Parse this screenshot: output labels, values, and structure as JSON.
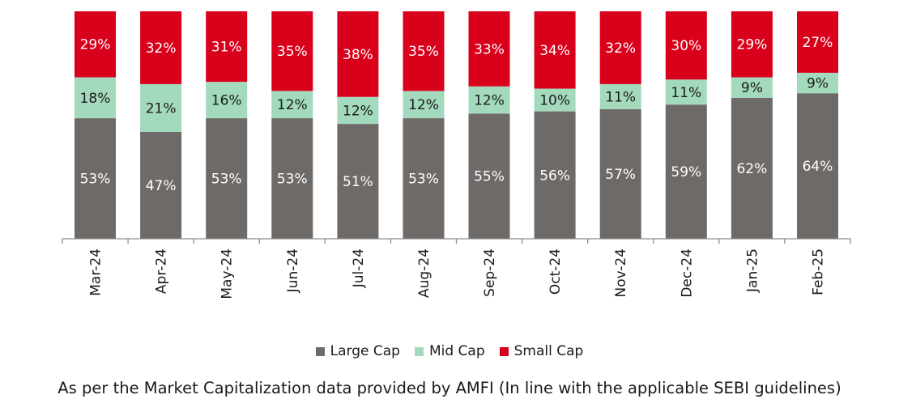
{
  "chart_data": {
    "type": "bar",
    "stacked": true,
    "percent_stacked": true,
    "categories": [
      "Mar-24",
      "Apr-24",
      "May-24",
      "Jun-24",
      "Jul-24",
      "Aug-24",
      "Sep-24",
      "Oct-24",
      "Nov-24",
      "Dec-24",
      "Jan-25",
      "Feb-25"
    ],
    "series": [
      {
        "name": "Large Cap",
        "color": "#6e6a68",
        "values": [
          53,
          47,
          53,
          53,
          51,
          53,
          55,
          56,
          57,
          59,
          62,
          64
        ]
      },
      {
        "name": "Mid Cap",
        "color": "#a3d9bd",
        "values": [
          18,
          21,
          16,
          12,
          12,
          12,
          12,
          10,
          11,
          11,
          9,
          9
        ]
      },
      {
        "name": "Small Cap",
        "color": "#d9001b",
        "values": [
          29,
          32,
          31,
          35,
          38,
          35,
          33,
          34,
          32,
          30,
          29,
          27
        ]
      }
    ],
    "value_label_suffix": "%",
    "x_tick_rotation": "vertical",
    "ylim": [
      0,
      100
    ],
    "grid": false,
    "legend": "bottom"
  },
  "footnote": "As per the Market Capitalization data provided by AMFI (In line with the applicable SEBI guidelines)"
}
